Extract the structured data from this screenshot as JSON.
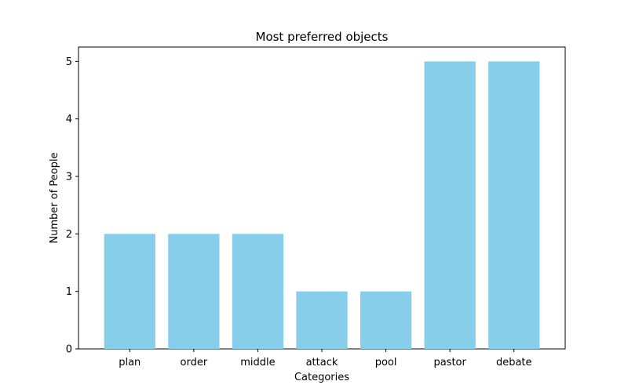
{
  "chart_data": {
    "type": "bar",
    "title": "Most preferred objects",
    "xlabel": "Categories",
    "ylabel": "Number of People",
    "categories": [
      "plan",
      "order",
      "middle",
      "attack",
      "pool",
      "pastor",
      "debate"
    ],
    "values": [
      2,
      2,
      2,
      1,
      1,
      5,
      5
    ],
    "ylim": [
      0,
      5.25
    ],
    "yticks": [
      0,
      1,
      2,
      3,
      4,
      5
    ],
    "bar_color": "#87ceeb",
    "grid": false,
    "legend": "none"
  }
}
